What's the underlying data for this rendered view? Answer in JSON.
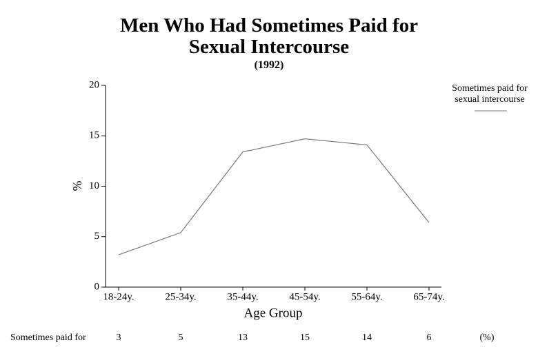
{
  "chart_data": {
    "type": "line",
    "title": "Men Who Had Sometimes Paid for Sexual Intercourse",
    "subtitle": "(1992)",
    "x_label": "Age Group",
    "y_label": "%",
    "categories": [
      "18-24y.",
      "25-34y.",
      "35-44y.",
      "45-54y.",
      "55-64y.",
      "65-74y."
    ],
    "series": [
      {
        "name": "Sometimes paid for sexual intercourse",
        "color": "#777777",
        "values": [
          3.2,
          5.4,
          13.4,
          14.7,
          14.1,
          6.4
        ],
        "value_labels": [
          "3",
          "5",
          "13",
          "15",
          "14",
          "6"
        ]
      }
    ],
    "table_row_label": "Sometimes paid for",
    "table_unit": "(%)",
    "ylim": [
      0,
      20
    ],
    "yticks": [
      0,
      5,
      10,
      15,
      20
    ],
    "grid": false,
    "legend": "top-right"
  }
}
